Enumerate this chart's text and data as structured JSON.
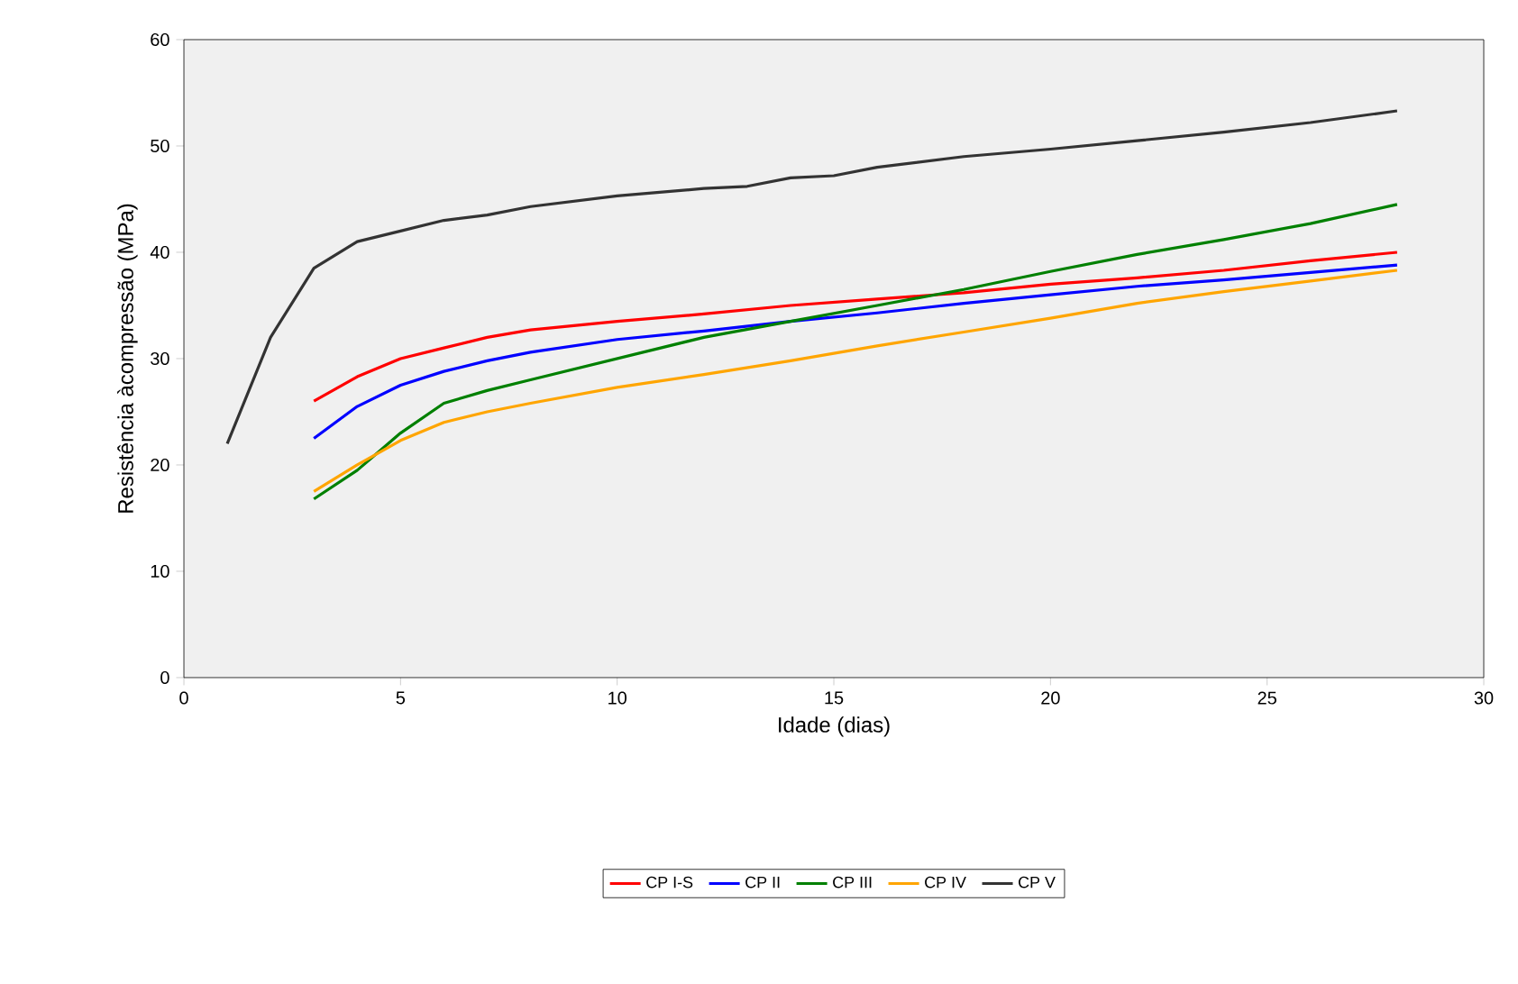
{
  "chart_data": {
    "type": "line",
    "xlabel": "Idade (dias)",
    "ylabel": "Resistência àcompressão (MPa)",
    "xlim": [
      0,
      30
    ],
    "xticks": [
      0,
      5,
      10,
      15,
      20,
      25,
      30
    ],
    "ylim": [
      0,
      60
    ],
    "yticks": [
      0,
      10,
      20,
      30,
      40,
      50,
      60
    ],
    "grid": false,
    "legend": "bottom",
    "marker": "none",
    "line_style": "solid",
    "series": [
      {
        "name": "CP I-S",
        "color": "#ff0000",
        "x": [
          3,
          4,
          5,
          6,
          7,
          8,
          10,
          12,
          14,
          16,
          18,
          20,
          22,
          24,
          26,
          28
        ],
        "values": [
          26,
          28.3,
          30,
          31,
          32,
          32.7,
          33.5,
          34.2,
          35,
          35.6,
          36.2,
          37,
          37.6,
          38.3,
          39.2,
          40
        ]
      },
      {
        "name": "CP II",
        "color": "#0000ff",
        "x": [
          3,
          4,
          5,
          6,
          7,
          8,
          10,
          12,
          14,
          16,
          18,
          20,
          22,
          24,
          26,
          28
        ],
        "values": [
          22.5,
          25.5,
          27.5,
          28.8,
          29.8,
          30.6,
          31.8,
          32.6,
          33.5,
          34.3,
          35.2,
          36,
          36.8,
          37.4,
          38.1,
          38.8
        ]
      },
      {
        "name": "CP III",
        "color": "#008000",
        "x": [
          3,
          4,
          5,
          6,
          7,
          8,
          10,
          12,
          14,
          16,
          18,
          20,
          22,
          24,
          26,
          28
        ],
        "values": [
          16.8,
          19.5,
          23,
          25.8,
          27,
          28,
          30,
          32,
          33.5,
          35,
          36.5,
          38.2,
          39.8,
          41.2,
          42.7,
          44.5
        ]
      },
      {
        "name": "CP IV",
        "color": "#ffa500",
        "x": [
          3,
          4,
          5,
          6,
          7,
          8,
          10,
          12,
          14,
          16,
          18,
          20,
          22,
          24,
          26,
          28
        ],
        "values": [
          17.5,
          20,
          22.3,
          24,
          25,
          25.8,
          27.3,
          28.5,
          29.8,
          31.2,
          32.5,
          33.8,
          35.2,
          36.3,
          37.3,
          38.3
        ]
      },
      {
        "name": "CP V",
        "color": "#333333",
        "x": [
          1,
          2,
          3,
          4,
          5,
          6,
          7,
          8,
          10,
          12,
          13,
          14,
          15,
          16,
          18,
          20,
          22,
          24,
          26,
          28
        ],
        "values": [
          22,
          32,
          38.5,
          41,
          42,
          43,
          43.5,
          44.3,
          45.3,
          46,
          46.2,
          47,
          47.2,
          48,
          49,
          49.7,
          50.5,
          51.3,
          52.2,
          53.3
        ]
      }
    ]
  }
}
